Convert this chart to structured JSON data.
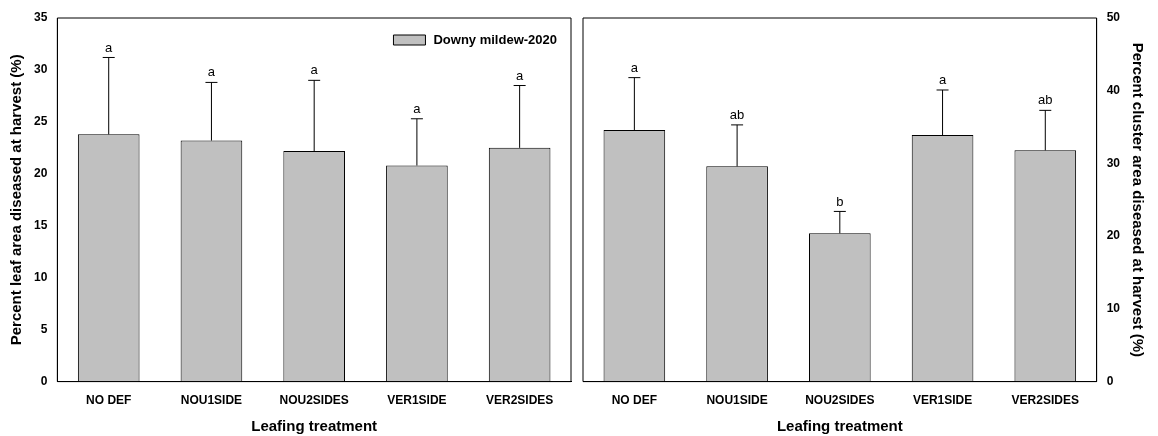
{
  "chart_data": [
    {
      "type": "bar",
      "xlabel": "Leafing treatment",
      "ylabel": "Percent leaf area diseased at harvest (%)",
      "categories": [
        "NO DEF",
        "NOU1SIDE",
        "NOU2SIDES",
        "VER1SIDE",
        "VER2SIDES"
      ],
      "series": [
        {
          "name": "Downy mildew-2020",
          "color": "#c0c0c0",
          "values": [
            23.8,
            23.2,
            22.2,
            20.8,
            22.5
          ],
          "errors": [
            [
              23.8,
              31.2
            ],
            [
              23.2,
              28.8
            ],
            [
              22.2,
              29.0
            ],
            [
              20.8,
              25.3
            ],
            [
              22.5,
              28.5
            ]
          ]
        }
      ],
      "ylim": [
        0,
        35
      ],
      "yticks": [
        0,
        5,
        10,
        15,
        20,
        25,
        30,
        35
      ],
      "grid": false,
      "legend": "top right",
      "annotations": [
        {
          "text": "a",
          "x": "NO DEF",
          "y": 31.2
        },
        {
          "text": "a",
          "x": "NOU1SIDE",
          "y": 28.8
        },
        {
          "text": "a",
          "x": "NOU2SIDES",
          "y": 29.0
        },
        {
          "text": "a",
          "x": "VER1SIDE",
          "y": 25.3
        },
        {
          "text": "a",
          "x": "VER2SIDES",
          "y": 28.5
        }
      ]
    },
    {
      "type": "bar",
      "xlabel": "Leafing treatment",
      "y2label": "Percent cluster area diseased at harvest (%)",
      "categories": [
        "NO DEF",
        "NOU1SIDE",
        "NOU2SIDES",
        "VER1SIDE",
        "VER2SIDES"
      ],
      "series": [
        {
          "color": "#c0c0c0",
          "axis": "y2",
          "values": [
            34.6,
            29.6,
            20.4,
            33.9,
            31.8
          ],
          "errors": [
            [
              34.6,
              41.8
            ],
            [
              29.6,
              35.3
            ],
            [
              20.4,
              23.4
            ],
            [
              33.9,
              40.1
            ],
            [
              31.8,
              37.3
            ]
          ]
        }
      ],
      "y2lim": [
        0,
        50
      ],
      "y2ticks": [
        0,
        10,
        20,
        30,
        40,
        50
      ],
      "grid": false,
      "legend": false,
      "annotations": [
        "a",
        "ab",
        "b",
        "a",
        "ab"
      ]
    }
  ]
}
